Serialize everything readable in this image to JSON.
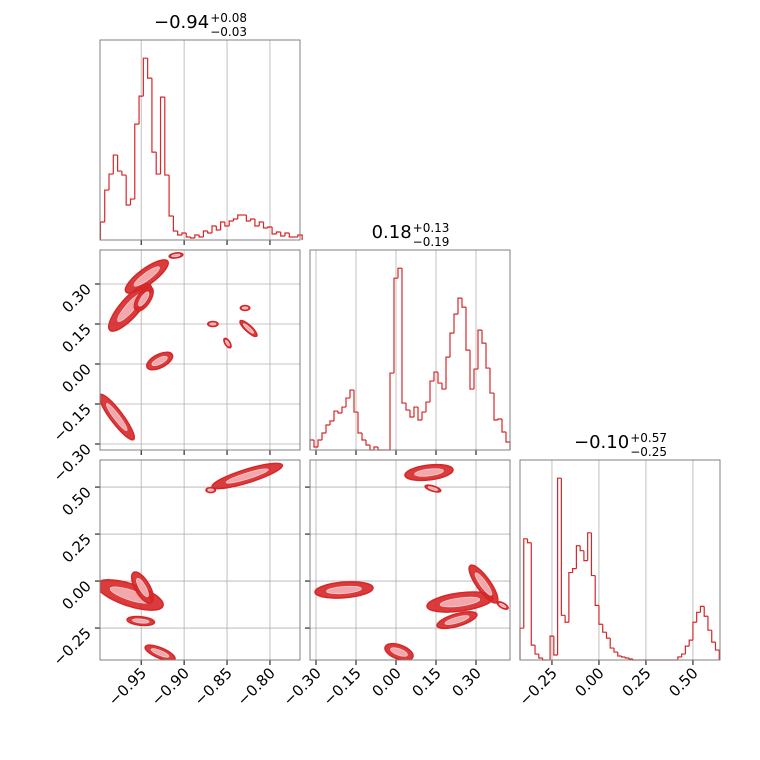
{
  "chart_data": {
    "type": "corner",
    "color": "#d62728",
    "grid": true,
    "parameters": [
      {
        "title": {
          "value": "−0.94",
          "plus": "+0.08",
          "minus": "−0.03"
        },
        "lim": [
          -0.998,
          -0.765
        ],
        "ticks": [
          {
            "value": -0.95,
            "label": "−0.95"
          },
          {
            "value": -0.9,
            "label": "−0.90"
          },
          {
            "value": -0.85,
            "label": "−0.85"
          },
          {
            "value": -0.8,
            "label": "−0.80"
          }
        ]
      },
      {
        "title": {
          "value": "0.18",
          "plus": "+0.13",
          "minus": "−0.19"
        },
        "lim": [
          -0.3225,
          0.4275
        ],
        "ticks": [
          {
            "value": -0.3,
            "label": "−0.30"
          },
          {
            "value": -0.15,
            "label": "−0.15"
          },
          {
            "value": 0,
            "label": "0.00"
          },
          {
            "value": 0.15,
            "label": "0.15"
          },
          {
            "value": 0.3,
            "label": "0.30"
          }
        ]
      },
      {
        "title": {
          "value": "−0.10",
          "plus": "+0.57",
          "minus": "−0.25"
        },
        "lim": [
          -0.42,
          0.644
        ],
        "ticks": [
          {
            "value": -0.25,
            "label": "−0.25"
          },
          {
            "value": 0,
            "label": "0.00"
          },
          {
            "value": 0.25,
            "label": "0.25"
          },
          {
            "value": 0.5,
            "label": "0.50"
          }
        ]
      }
    ],
    "histograms": [
      {
        "bins": [
          -0.9975,
          -0.9925,
          -0.9875,
          -0.9825,
          -0.9775,
          -0.9725,
          -0.9675,
          -0.9625,
          -0.9575,
          -0.9525,
          -0.9475,
          -0.9425,
          -0.9375,
          -0.9325,
          -0.9275,
          -0.9225,
          -0.9175,
          -0.9125,
          -0.9075,
          -0.9025,
          -0.8975,
          -0.8925,
          -0.8875,
          -0.8825,
          -0.8775,
          -0.8725,
          -0.8675,
          -0.8625,
          -0.8575,
          -0.8525,
          -0.8475,
          -0.8425,
          -0.8375,
          -0.8325,
          -0.8275,
          -0.8225,
          -0.8175,
          -0.8125,
          -0.8075,
          -0.8025,
          -0.7975,
          -0.7925,
          -0.7875,
          -0.7825,
          -0.7775,
          -0.7725,
          -0.7675,
          -0.7625
        ],
        "counts": [
          18,
          50,
          66,
          85,
          69,
          65,
          35,
          41,
          116,
          144,
          182,
          162,
          88,
          66,
          143,
          65,
          24,
          9,
          5,
          7,
          3,
          2,
          5,
          3,
          9,
          7,
          14,
          10,
          18,
          14,
          19,
          21,
          25,
          25,
          19,
          21,
          14,
          18,
          12,
          13,
          6,
          8,
          4,
          7,
          3,
          3,
          5
        ]
      },
      {
        "bins": [
          -0.3225,
          -0.3075,
          -0.2925,
          -0.2775,
          -0.2625,
          -0.2475,
          -0.2325,
          -0.2175,
          -0.2025,
          -0.1875,
          -0.1725,
          -0.1575,
          -0.1425,
          -0.1275,
          -0.1125,
          -0.0975,
          -0.0825,
          -0.0675,
          -0.0525,
          -0.0375,
          -0.0225,
          -0.0075,
          0.0075,
          0.0225,
          0.0375,
          0.0525,
          0.0675,
          0.0825,
          0.0975,
          0.1125,
          0.1275,
          0.1425,
          0.1575,
          0.1725,
          0.1875,
          0.2025,
          0.2175,
          0.2325,
          0.2475,
          0.2625,
          0.2775,
          0.2925,
          0.3075,
          0.3225,
          0.3375,
          0.3525,
          0.3675,
          0.3825,
          0.3975,
          0.4125,
          0.4275
        ],
        "counts": [
          10,
          3,
          10,
          17,
          25,
          29,
          39,
          37,
          43,
          52,
          60,
          38,
          17,
          10,
          5,
          0,
          3,
          0,
          0,
          0,
          77,
          172,
          182,
          47,
          40,
          33,
          43,
          30,
          38,
          48,
          69,
          78,
          67,
          61,
          93,
          117,
          136,
          152,
          143,
          100,
          61,
          81,
          120,
          107,
          82,
          57,
          30,
          31,
          18,
          8
        ]
      },
      {
        "bins": [
          -0.42,
          -0.4,
          -0.38,
          -0.36,
          -0.34,
          -0.32,
          -0.3,
          -0.28,
          -0.26,
          -0.24,
          -0.22,
          -0.2,
          -0.18,
          -0.16,
          -0.14,
          -0.12,
          -0.1,
          -0.08,
          -0.06,
          -0.04,
          -0.02,
          0,
          0.02,
          0.04,
          0.06,
          0.08,
          0.1,
          0.12,
          0.14,
          0.16,
          0.18,
          0.2,
          0.22,
          0.24,
          0.26,
          0.28,
          0.3,
          0.32,
          0.34,
          0.36,
          0.38,
          0.4,
          0.42,
          0.44,
          0.46,
          0.48,
          0.5,
          0.52,
          0.54,
          0.56,
          0.58,
          0.6,
          0.62,
          0.64
        ],
        "counts": [
          32,
          122,
          118,
          15,
          6,
          2,
          0,
          0,
          24,
          5,
          183,
          45,
          38,
          88,
          92,
          115,
          110,
          100,
          128,
          85,
          55,
          36,
          28,
          22,
          12,
          8,
          4,
          3,
          2,
          1,
          0,
          0,
          0,
          0,
          0,
          0,
          0,
          0,
          0,
          0,
          0,
          0,
          3,
          6,
          14,
          20,
          38,
          48,
          54,
          44,
          30,
          18,
          10
        ]
      }
    ],
    "contours": [
      {
        "blobs": [
          {
            "x": [
              -0.984,
              -0.942
            ],
            "y": [
              0.135,
              0.289
            ],
            "w": 0.35
          },
          {
            "x": [
              -0.965,
              -0.922
            ],
            "y": [
              0.2775,
              0.379
            ],
            "w": 0.35
          },
          {
            "x": [
              -0.954,
              -0.94
            ],
            "y": [
              0.21,
              0.2775
            ],
            "w": 0.6
          },
          {
            "x": [
              -0.94,
              -0.917
            ],
            "y": [
              -0.0075,
              0.03
            ],
            "w": 0.6
          },
          {
            "x": [
              -0.996,
              -0.961
            ],
            "y": [
              -0.124,
              -0.274
            ],
            "w": 0.25
          },
          {
            "x": [
              -0.832,
              -0.818
            ],
            "y": [
              0.154,
              0.1125
            ],
            "w": 0.4
          },
          {
            "x": [
              -0.869,
              -0.864
            ],
            "y": [
              0.15,
              0.15
            ],
            "w": 0.6
          },
          {
            "x": [
              -0.851,
              -0.848
            ],
            "y": [
              0.086,
              0.071
            ],
            "w": 0.6
          },
          {
            "x": [
              -0.831,
              -0.827
            ],
            "y": [
              0.21,
              0.21
            ],
            "w": 0.6
          },
          {
            "x": [
              -0.914,
              -0.905
            ],
            "y": [
              0.405,
              0.409
            ],
            "w": 0.4
          }
        ]
      },
      {
        "blobs": [
          {
            "x": [
              -0.864,
              -0.789
            ],
            "y": [
              0.506,
              0.612
            ],
            "w": 0.2
          },
          {
            "x": [
              -0.998,
              -0.928
            ],
            "y": [
              -0.021,
              -0.127
            ],
            "w": 0.35
          },
          {
            "x": [
              -0.957,
              -0.94
            ],
            "y": [
              0.032,
              -0.101
            ],
            "w": 0.5
          },
          {
            "x": [
              -0.963,
              -0.938
            ],
            "y": [
              -0.207,
              -0.218
            ],
            "w": 0.4
          },
          {
            "x": [
              -0.942,
              -0.914
            ],
            "y": [
              -0.356,
              -0.409
            ],
            "w": 0.4
          },
          {
            "x": [
              -0.871,
              -0.867
            ],
            "y": [
              0.484,
              0.484
            ],
            "w": 0.6
          }
        ]
      },
      {
        "blobs": [
          {
            "x": [
              0.045,
              0.2025
            ],
            "y": [
              0.564,
              0.591
            ],
            "w": 0.35
          },
          {
            "x": [
              0.12,
              0.157
            ],
            "y": [
              0.5,
              0.484
            ],
            "w": 0.5
          },
          {
            "x": [
              -0.2925,
              -0.0975
            ],
            "y": [
              -0.058,
              -0.037
            ],
            "w": 0.3
          },
          {
            "x": [
              -0.03,
              0.0525
            ],
            "y": [
              -0.356,
              -0.399
            ],
            "w": 0.6
          },
          {
            "x": [
              0.1275,
              0.3525
            ],
            "y": [
              -0.133,
              -0.09
            ],
            "w": 0.3
          },
          {
            "x": [
              0.165,
              0.2925
            ],
            "y": [
              -0.234,
              -0.181
            ],
            "w": 0.35
          },
          {
            "x": [
              0.285,
              0.371
            ],
            "y": [
              0.069,
              -0.101
            ],
            "w": 0.35
          },
          {
            "x": [
              0.39,
              0.41
            ],
            "y": [
              -0.122,
              -0.138
            ],
            "w": 0.6
          }
        ]
      }
    ]
  }
}
